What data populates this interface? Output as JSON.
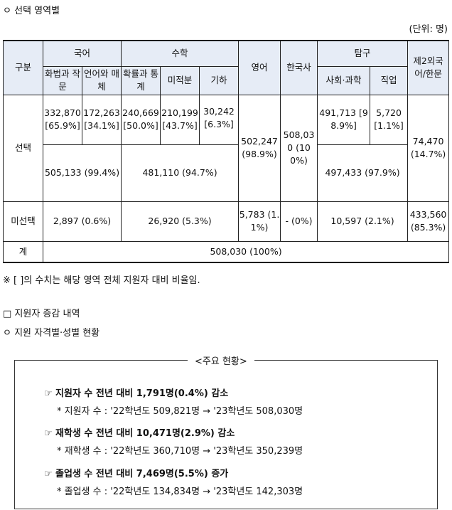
{
  "section1": {
    "title": "ㅇ 선택 영역별",
    "unit": "(단위: 명)"
  },
  "table": {
    "header": {
      "gubun": "구분",
      "korean": "국어",
      "math": "수학",
      "english": "영어",
      "korean_history": "한국사",
      "inquiry": "탐구",
      "second_lang": "제2외국어/한문",
      "k_sub1": "화법과 작문",
      "k_sub2": "언어와 매체",
      "m_sub1": "확률과 통계",
      "m_sub2": "미적분",
      "m_sub3": "기하",
      "i_sub1": "사회·과학",
      "i_sub2": "직업"
    },
    "select_label": "선택",
    "detail": {
      "k1": "332,870 [65.9%]",
      "k2": "172,263 [34.1%]",
      "m1": "240,669 [50.0%]",
      "m2": "210,199 [43.7%]",
      "m3": "30,242 [6.3%]",
      "i1": "491,713 [98.9%]",
      "i2": "5,720 [1.1%]"
    },
    "select_totals": {
      "korean": "505,133 (99.4%)",
      "math": "481,110 (94.7%)",
      "english": "502,247 (98.9%)",
      "korean_history": "508,030 (100%)",
      "inquiry": "497,433 (97.9%)",
      "second_lang": "74,470 (14.7%)"
    },
    "unselect_label": "미선택",
    "unselect": {
      "korean": "2,897 (0.6%)",
      "math": "26,920 (5.3%)",
      "english": "5,783 (1.1%)",
      "korean_history": "- (0%)",
      "inquiry": "10,597 (2.1%)",
      "second_lang": "433,560 (85.3%)"
    },
    "total_label": "계",
    "total_value": "508,030 (100%)"
  },
  "note": "※ [ ]의 수치는 해당 영역 전체 지원자 대비 비율임.",
  "section2": {
    "title": "□ 지원자 증감 내역",
    "subtitle": "ㅇ 지원 자격별·성별 현황"
  },
  "summary": {
    "title": "<주요 현황>",
    "items": [
      {
        "icon": "☞",
        "headline": "지원자 수 전년 대비 1,791명(0.4%) 감소",
        "detail": "* 지원자 수 : '22학년도 509,821명 → '23학년도 508,030명"
      },
      {
        "icon": "☞",
        "headline": "재학생 수 전년 대비 10,471명(2.9%) 감소",
        "detail": "* 재학생 수 : '22학년도 360,710명 → '23학년도 350,239명"
      },
      {
        "icon": "☞",
        "headline": "졸업생 수 전년 대비 7,469명(5.5%) 증가",
        "detail": "* 졸업생 수 : '22학년도 134,834명 → '23학년도 142,303명"
      }
    ]
  }
}
